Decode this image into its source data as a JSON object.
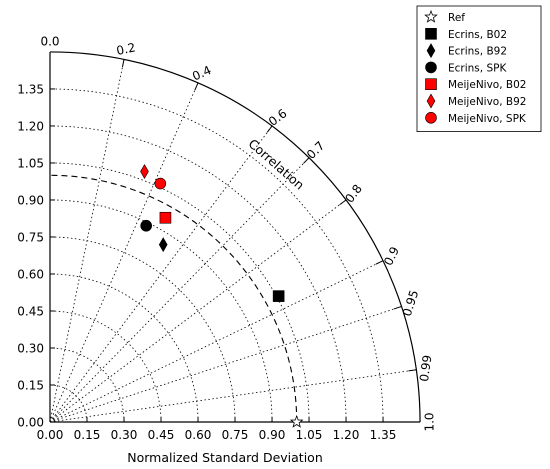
{
  "chart_data": {
    "type": "scatter",
    "subtype": "taylor-diagram",
    "xlabel": "Normalized Standard Deviation",
    "corr_axis_label": "Correlation",
    "std_ticks": [
      "0.00",
      "0.15",
      "0.30",
      "0.45",
      "0.60",
      "0.75",
      "0.90",
      "1.05",
      "1.20",
      "1.35"
    ],
    "std_tick_values": [
      0.0,
      0.15,
      0.3,
      0.45,
      0.6,
      0.75,
      0.9,
      1.05,
      1.2,
      1.35
    ],
    "std_max": 1.5,
    "corr_ticks": [
      "0.0",
      "0.2",
      "0.4",
      "0.6",
      "0.7",
      "0.8",
      "0.9",
      "0.95",
      "0.99",
      "1.0"
    ],
    "corr_tick_values": [
      0.0,
      0.2,
      0.4,
      0.6,
      0.7,
      0.8,
      0.9,
      0.95,
      0.99,
      1.0
    ],
    "reference_std": 1.0,
    "grid": true,
    "legend_position": "top-right outside",
    "series": [
      {
        "name": "Ref",
        "marker": "star",
        "color": "#ffffff",
        "std": 1.0,
        "corr": 1.0
      },
      {
        "name": "Ecrins, B02",
        "marker": "square",
        "color": "#000000",
        "std": 1.058,
        "corr": 0.876
      },
      {
        "name": "Ecrins, B92",
        "marker": "thin-diamond",
        "color": "#000000",
        "std": 0.853,
        "corr": 0.538
      },
      {
        "name": "Ecrins, SPK",
        "marker": "circle",
        "color": "#000000",
        "std": 0.886,
        "corr": 0.44
      },
      {
        "name": "MeijeNivo, B02",
        "marker": "square",
        "color": "#ff0000",
        "std": 0.951,
        "corr": 0.492
      },
      {
        "name": "MeijeNivo, B92",
        "marker": "thin-diamond",
        "color": "#ff0000",
        "std": 1.085,
        "corr": 0.353
      },
      {
        "name": "MeijeNivo, SPK",
        "marker": "circle",
        "color": "#ff0000",
        "std": 1.065,
        "corr": 0.42
      }
    ]
  }
}
